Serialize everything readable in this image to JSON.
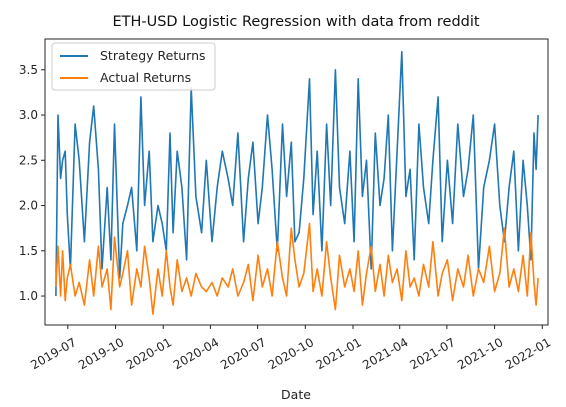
{
  "chart_data": {
    "type": "line",
    "title": "ETH-USD Logistic Regression with data from reddit",
    "xlabel": "Date",
    "ylabel": "",
    "x_range": [
      "2019-05-18",
      "2022-01-12"
    ],
    "ylim": [
      0.68,
      3.84
    ],
    "x_ticks": [
      {
        "date": "2019-07-01",
        "label": "2019-07"
      },
      {
        "date": "2019-10-01",
        "label": "2019-10"
      },
      {
        "date": "2020-01-01",
        "label": "2020-01"
      },
      {
        "date": "2020-04-01",
        "label": "2020-04"
      },
      {
        "date": "2020-07-01",
        "label": "2020-07"
      },
      {
        "date": "2020-10-01",
        "label": "2020-10"
      },
      {
        "date": "2021-01-01",
        "label": "2021-01"
      },
      {
        "date": "2021-04-01",
        "label": "2021-04"
      },
      {
        "date": "2021-07-01",
        "label": "2021-07"
      },
      {
        "date": "2021-10-01",
        "label": "2021-10"
      },
      {
        "date": "2022-01-01",
        "label": "2022-01"
      }
    ],
    "y_ticks": [
      {
        "value": 1.0,
        "label": "1.0"
      },
      {
        "value": 1.5,
        "label": "1.5"
      },
      {
        "value": 2.0,
        "label": "2.0"
      },
      {
        "value": 2.5,
        "label": "2.5"
      },
      {
        "value": 3.0,
        "label": "3.0"
      },
      {
        "value": 3.5,
        "label": "3.5"
      }
    ],
    "grid": false,
    "legend_position": "top-left",
    "x": [
      "2019-06-08",
      "2019-06-12",
      "2019-06-17",
      "2019-06-21",
      "2019-06-26",
      "2019-06-30",
      "2019-07-06",
      "2019-07-15",
      "2019-07-23",
      "2019-08-02",
      "2019-08-12",
      "2019-08-20",
      "2019-08-29",
      "2019-09-05",
      "2019-09-15",
      "2019-09-22",
      "2019-09-29",
      "2019-10-09",
      "2019-10-15",
      "2019-10-24",
      "2019-11-01",
      "2019-11-11",
      "2019-11-19",
      "2019-11-26",
      "2019-12-05",
      "2019-12-12",
      "2019-12-22",
      "2019-12-30",
      "2020-01-07",
      "2020-01-14",
      "2020-01-20",
      "2020-01-28",
      "2020-02-06",
      "2020-02-15",
      "2020-02-24",
      "2020-03-04",
      "2020-03-15",
      "2020-03-24",
      "2020-04-04",
      "2020-04-14",
      "2020-04-24",
      "2020-05-05",
      "2020-05-14",
      "2020-05-24",
      "2020-06-04",
      "2020-06-13",
      "2020-06-22",
      "2020-07-02",
      "2020-07-10",
      "2020-07-20",
      "2020-07-29",
      "2020-08-08",
      "2020-08-18",
      "2020-08-26",
      "2020-09-04",
      "2020-09-11",
      "2020-09-19",
      "2020-09-28",
      "2020-10-09",
      "2020-10-16",
      "2020-10-24",
      "2020-11-02",
      "2020-11-11",
      "2020-11-19",
      "2020-11-28",
      "2020-12-06",
      "2020-12-16",
      "2020-12-26",
      "2021-01-03",
      "2021-01-11",
      "2021-01-19",
      "2021-01-27",
      "2021-02-05",
      "2021-02-13",
      "2021-02-22",
      "2021-03-02",
      "2021-03-10",
      "2021-03-18",
      "2021-03-27",
      "2021-04-05",
      "2021-04-13",
      "2021-04-21",
      "2021-04-29",
      "2021-05-08",
      "2021-05-17",
      "2021-05-27",
      "2021-06-04",
      "2021-06-14",
      "2021-06-22",
      "2021-07-02",
      "2021-07-12",
      "2021-07-22",
      "2021-08-02",
      "2021-08-11",
      "2021-08-21",
      "2021-08-31",
      "2021-09-10",
      "2021-09-21",
      "2021-10-01",
      "2021-10-11",
      "2021-10-20",
      "2021-10-29",
      "2021-11-07",
      "2021-11-16",
      "2021-11-25",
      "2021-12-03",
      "2021-12-10",
      "2021-12-16",
      "2021-12-20",
      "2021-12-24"
    ],
    "series": [
      {
        "name": "Strategy Returns",
        "color": "#1f77b4",
        "values": [
          1.0,
          3.0,
          2.3,
          2.5,
          2.6,
          1.9,
          1.3,
          2.9,
          2.5,
          1.6,
          2.7,
          3.1,
          2.4,
          1.3,
          2.2,
          1.4,
          2.9,
          1.2,
          1.8,
          2.0,
          2.2,
          1.5,
          3.2,
          2.0,
          2.6,
          1.6,
          2.0,
          1.8,
          1.5,
          2.8,
          1.7,
          2.6,
          2.2,
          1.4,
          3.3,
          2.1,
          1.7,
          2.5,
          1.6,
          2.2,
          2.6,
          2.3,
          2.0,
          2.8,
          1.6,
          2.3,
          2.7,
          1.8,
          2.2,
          3.0,
          2.4,
          1.5,
          2.9,
          2.1,
          2.7,
          1.6,
          1.7,
          2.3,
          3.4,
          1.9,
          2.6,
          1.5,
          2.9,
          2.0,
          3.5,
          2.2,
          1.8,
          2.6,
          1.6,
          3.4,
          2.1,
          2.5,
          1.3,
          2.8,
          2.0,
          2.3,
          3.0,
          1.5,
          2.6,
          3.7,
          2.1,
          2.4,
          1.4,
          2.9,
          2.2,
          1.8,
          2.5,
          3.2,
          1.6,
          2.5,
          1.8,
          2.9,
          2.1,
          2.4,
          3.0,
          1.3,
          2.2,
          2.5,
          2.9,
          2.0,
          1.6,
          2.2,
          2.6,
          1.5,
          2.5,
          2.0,
          1.4,
          2.8,
          2.4,
          3.0
        ]
      },
      {
        "name": "Actual Returns",
        "color": "#ff7f0e",
        "values": [
          1.1,
          1.55,
          1.0,
          1.5,
          0.95,
          1.2,
          1.35,
          1.0,
          1.15,
          0.9,
          1.4,
          1.0,
          1.55,
          1.1,
          1.3,
          0.85,
          1.65,
          1.1,
          1.25,
          1.5,
          0.9,
          1.3,
          1.1,
          1.55,
          1.2,
          0.8,
          1.3,
          1.0,
          1.5,
          1.1,
          0.9,
          1.4,
          1.05,
          1.2,
          1.0,
          1.25,
          1.1,
          1.05,
          1.15,
          1.0,
          1.2,
          1.1,
          1.3,
          1.0,
          1.15,
          1.35,
          0.95,
          1.45,
          1.1,
          1.3,
          1.0,
          1.6,
          1.2,
          1.0,
          1.75,
          1.4,
          1.1,
          1.25,
          1.8,
          1.05,
          1.3,
          1.0,
          1.6,
          1.2,
          0.85,
          1.45,
          1.1,
          1.3,
          1.05,
          1.5,
          0.9,
          1.25,
          1.55,
          1.05,
          1.35,
          1.0,
          1.45,
          1.15,
          1.3,
          0.95,
          1.5,
          1.1,
          1.2,
          1.0,
          1.35,
          1.1,
          1.6,
          1.0,
          1.25,
          1.4,
          0.95,
          1.3,
          1.1,
          1.45,
          1.0,
          1.3,
          1.15,
          1.55,
          1.05,
          1.25,
          1.75,
          1.1,
          1.3,
          1.05,
          1.45,
          1.0,
          1.7,
          1.15,
          0.9,
          1.2
        ]
      }
    ]
  }
}
